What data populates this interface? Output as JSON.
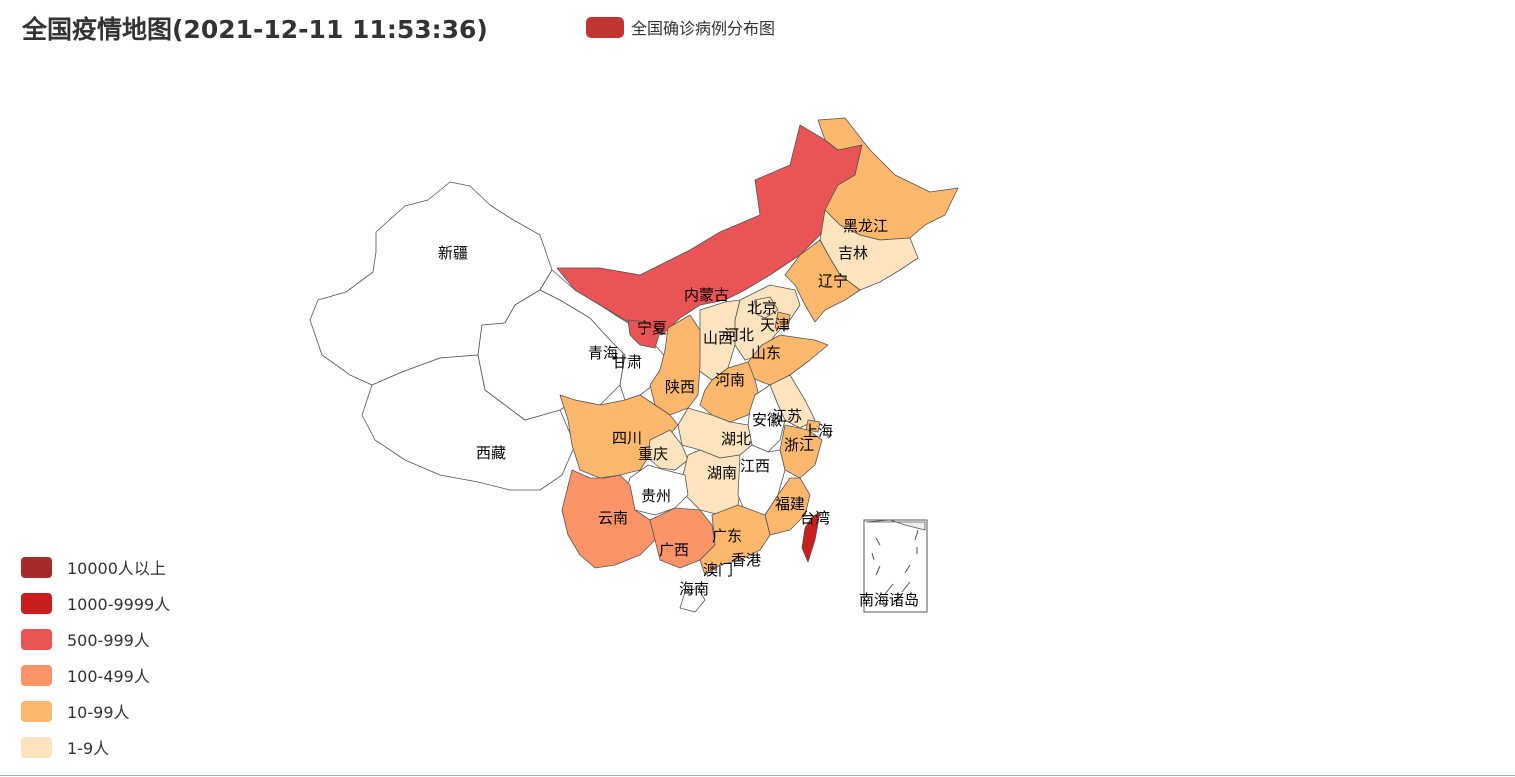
{
  "title": "全国疫情地图(2021-12-11 11:53:36)",
  "legend": {
    "label": "全国确诊病例分布图",
    "color": "#c23531"
  },
  "visual_map": [
    {
      "label": "10000人以上",
      "color": "#a52a2a"
    },
    {
      "label": "1000-9999人",
      "color": "#c81e1e"
    },
    {
      "label": "500-999人",
      "color": "#eb5454"
    },
    {
      "label": "100-499人",
      "color": "#fd9468"
    },
    {
      "label": "10-99人",
      "color": "#fdb86d"
    },
    {
      "label": "1-9人",
      "color": "#fde4bf"
    }
  ],
  "map": {
    "bands": [
      {
        "region": "新疆",
        "band": null
      },
      {
        "region": "西藏",
        "band": null
      },
      {
        "region": "青海",
        "band": null
      },
      {
        "region": "甘肃",
        "band": null
      },
      {
        "region": "内蒙古",
        "band": "500-999人"
      },
      {
        "region": "宁夏",
        "band": "500-999人"
      },
      {
        "region": "黑龙江",
        "band": "10-99人"
      },
      {
        "region": "吉林",
        "band": "1-9人"
      },
      {
        "region": "辽宁",
        "band": "10-99人"
      },
      {
        "region": "北京",
        "band": "1-9人"
      },
      {
        "region": "天津",
        "band": "10-99人"
      },
      {
        "region": "河北",
        "band": "1-9人"
      },
      {
        "region": "山西",
        "band": "1-9人"
      },
      {
        "region": "山东",
        "band": "10-99人"
      },
      {
        "region": "陕西",
        "band": "10-99人"
      },
      {
        "region": "河南",
        "band": "10-99人"
      },
      {
        "region": "江苏",
        "band": "1-9人"
      },
      {
        "region": "安徽",
        "band": null
      },
      {
        "region": "上海",
        "band": "10-99人"
      },
      {
        "region": "浙江",
        "band": "10-99人"
      },
      {
        "region": "湖北",
        "band": "1-9人"
      },
      {
        "region": "四川",
        "band": "10-99人"
      },
      {
        "region": "重庆",
        "band": "1-9人"
      },
      {
        "region": "湖南",
        "band": "1-9人"
      },
      {
        "region": "江西",
        "band": null
      },
      {
        "region": "贵州",
        "band": null
      },
      {
        "region": "福建",
        "band": "10-99人"
      },
      {
        "region": "台湾",
        "band": "1000-9999人"
      },
      {
        "region": "云南",
        "band": "100-499人"
      },
      {
        "region": "广西",
        "band": "100-499人"
      },
      {
        "region": "广东",
        "band": "10-99人"
      },
      {
        "region": "香港",
        "band": "10-99人"
      },
      {
        "region": "澳门",
        "band": "1-9人"
      },
      {
        "region": "海南",
        "band": null
      },
      {
        "region": "南海诸岛",
        "band": null
      }
    ],
    "labels": {
      "xinjiang": "新疆",
      "xizang": "西藏",
      "qinghai": "青海",
      "gansu": "甘肃",
      "neimenggu": "内蒙古",
      "ningxia": "宁夏",
      "heilongjiang": "黑龙江",
      "jilin": "吉林",
      "liaoning": "辽宁",
      "beijing": "北京",
      "tianjin": "天津",
      "hebei": "河北",
      "shanxi": "山西",
      "shandong": "山东",
      "shaanxi": "陕西",
      "henan": "河南",
      "jiangsu": "江苏",
      "anhui": "安徽",
      "shanghai": "上海",
      "zhejiang": "浙江",
      "hubei": "湖北",
      "sichuan": "四川",
      "chongqing": "重庆",
      "hunan": "湖南",
      "jiangxi": "江西",
      "guizhou": "贵州",
      "fujian": "福建",
      "taiwan": "台湾",
      "yunnan": "云南",
      "guangxi": "广西",
      "guangdong": "广东",
      "xianggang": "香港",
      "aomen": "澳门",
      "hainan": "海南",
      "nanhai": "南海诸岛"
    }
  }
}
